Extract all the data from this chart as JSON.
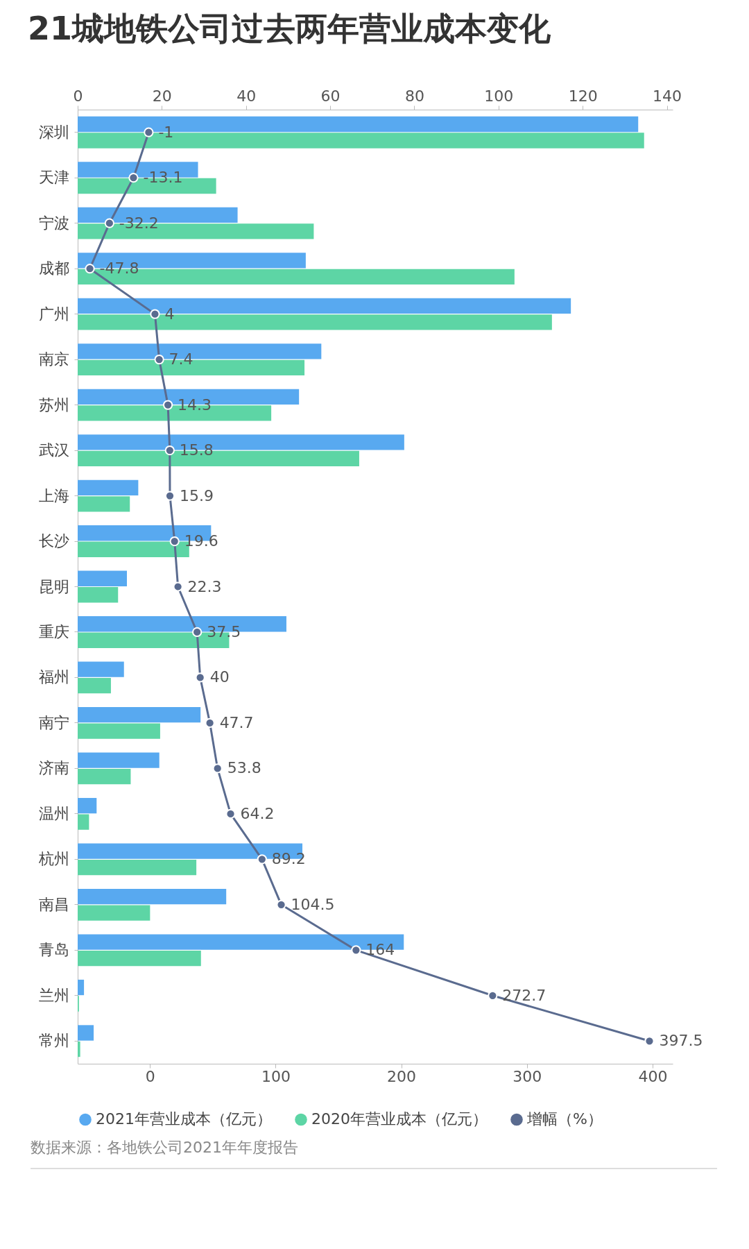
{
  "chart_data": {
    "type": "bar",
    "orientation": "horizontal",
    "title": "21城地铁公司过去两年营业成本变化",
    "categories": [
      "深圳",
      "天津",
      "宁波",
      "成都",
      "广州",
      "南京",
      "苏州",
      "武汉",
      "上海",
      "长沙",
      "昆明",
      "重庆",
      "福州",
      "南宁",
      "济南",
      "温州",
      "杭州",
      "南昌",
      "青岛",
      "兰州",
      "常州"
    ],
    "series": [
      {
        "name": "2021年营业成本（亿元）",
        "axis": "x2",
        "color": "#58a9f0",
        "values": [
          133.2,
          28.6,
          38.0,
          54.2,
          117.2,
          57.9,
          52.6,
          77.6,
          14.4,
          31.7,
          11.7,
          49.6,
          11.0,
          29.2,
          19.4,
          4.5,
          53.4,
          35.3,
          77.5,
          1.5,
          3.8
        ]
      },
      {
        "name": "2020年营业成本（亿元）",
        "axis": "x2",
        "color": "#5dd5a5",
        "values": [
          134.6,
          32.9,
          56.1,
          103.8,
          112.7,
          53.9,
          46.0,
          66.9,
          12.4,
          26.5,
          9.6,
          36.0,
          7.9,
          19.6,
          12.6,
          2.7,
          28.2,
          17.2,
          29.3,
          0.3,
          0.6
        ]
      },
      {
        "name": "增幅（%）",
        "type": "line",
        "color": "#5a6b8f",
        "marker": "circle",
        "values": [
          -1,
          -13.1,
          -32.2,
          -47.8,
          4,
          7.4,
          14.3,
          15.8,
          15.9,
          19.6,
          22.3,
          37.5,
          40,
          47.7,
          53.8,
          64.2,
          89.2,
          104.5,
          164,
          272.7,
          397.5
        ],
        "value_labels": [
          "-1",
          "-13.1",
          "-32.2",
          "-47.8",
          "4",
          "7.4",
          "14.3",
          "15.8",
          "15.9",
          "19.6",
          "22.3",
          "37.5",
          "40",
          "47.7",
          "53.8",
          "64.2",
          "89.2",
          "104.5",
          "164",
          "272.7",
          "397.5"
        ]
      }
    ],
    "xlim": [
      -57.5,
      416
    ],
    "xticks": [
      0,
      100,
      200,
      300,
      400
    ],
    "x2lim": [
      0,
      141.4
    ],
    "x2ticks": [
      0,
      20,
      40,
      60,
      80,
      100,
      120,
      140
    ],
    "grid": false,
    "legend": "bottom",
    "annotations": [
      "数据来源：各地铁公司2021年年度报告"
    ]
  }
}
